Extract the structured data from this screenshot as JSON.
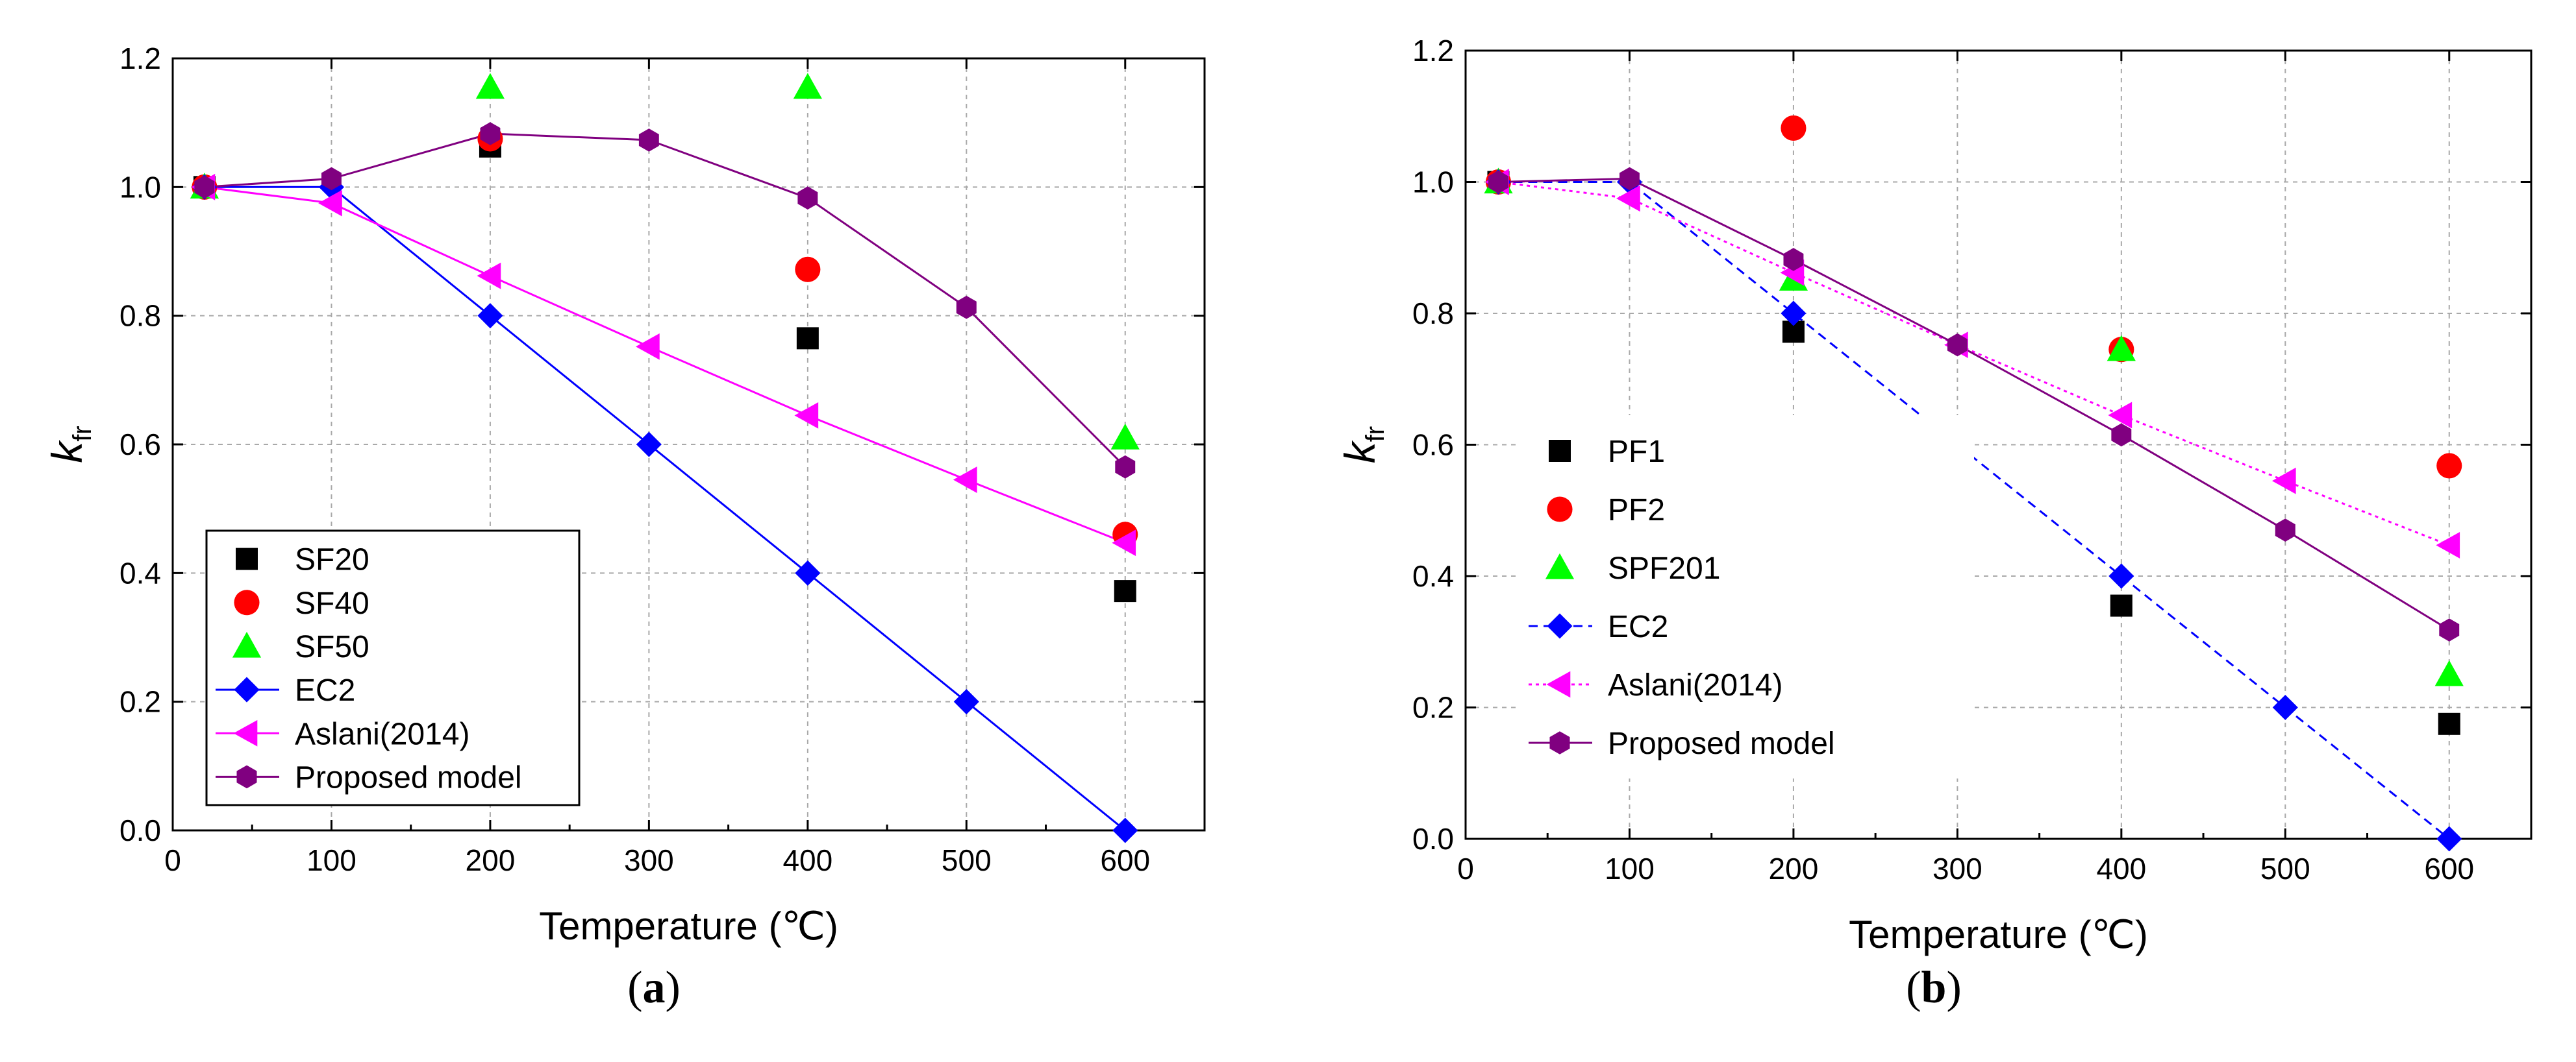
{
  "chart_data": [
    {
      "type": "line",
      "panel_label": "a",
      "title": "",
      "xlabel": "Temperature (℃)",
      "ylabel_main": "k",
      "ylabel_sub": "fr",
      "xlim": [
        0,
        650
      ],
      "ylim": [
        0,
        1.2
      ],
      "xticks": [
        0,
        100,
        200,
        300,
        400,
        500,
        600
      ],
      "yticks": [
        "0.0",
        "0.2",
        "0.4",
        "0.6",
        "0.8",
        "1.0",
        "1.2"
      ],
      "grid": true,
      "legend_position": "bottom-left",
      "series": [
        {
          "name": "SF20",
          "marker": "square",
          "color": "#000000",
          "line": "none",
          "x": [
            20,
            200,
            400,
            600
          ],
          "y": [
            1.0,
            1.063,
            0.765,
            0.372
          ]
        },
        {
          "name": "SF40",
          "marker": "circle",
          "color": "#ff0000",
          "line": "none",
          "x": [
            20,
            200,
            400,
            600
          ],
          "y": [
            1.0,
            1.075,
            0.872,
            0.46
          ]
        },
        {
          "name": "SF50",
          "marker": "triangle-up",
          "color": "#00ff00",
          "line": "none",
          "x": [
            20,
            200,
            400,
            600
          ],
          "y": [
            1.0,
            1.155,
            1.155,
            0.61
          ]
        },
        {
          "name": "EC2",
          "marker": "diamond",
          "color": "#0000ff",
          "line": "solid",
          "x": [
            20,
            100,
            200,
            300,
            400,
            500,
            600
          ],
          "y": [
            1.0,
            1.0,
            0.8,
            0.6,
            0.4,
            0.2,
            0.0
          ]
        },
        {
          "name": "Aslani(2014)",
          "marker": "triangle-left",
          "color": "#ff00ff",
          "line": "solid",
          "x": [
            20,
            100,
            200,
            300,
            400,
            500,
            600
          ],
          "y": [
            1.0,
            0.975,
            0.862,
            0.752,
            0.645,
            0.545,
            0.447
          ]
        },
        {
          "name": "Proposed model",
          "marker": "hexagon",
          "color": "#800080",
          "line": "solid",
          "x": [
            20,
            100,
            200,
            300,
            400,
            500,
            600
          ],
          "y": [
            1.0,
            1.013,
            1.083,
            1.073,
            0.983,
            0.813,
            0.565
          ]
        }
      ]
    },
    {
      "type": "line",
      "panel_label": "b",
      "title": "",
      "xlabel": "Temperature (℃)",
      "ylabel_main": "k",
      "ylabel_sub": "fr",
      "xlim": [
        0,
        650
      ],
      "ylim": [
        0,
        1.2
      ],
      "xticks": [
        0,
        100,
        200,
        300,
        400,
        500,
        600
      ],
      "yticks": [
        "0.0",
        "0.2",
        "0.4",
        "0.6",
        "0.8",
        "1.0",
        "1.2"
      ],
      "grid": true,
      "legend_position": "middle-left",
      "series": [
        {
          "name": "PF1",
          "marker": "square",
          "color": "#000000",
          "line": "none",
          "x": [
            20,
            200,
            400,
            600
          ],
          "y": [
            1.0,
            0.772,
            0.355,
            0.175
          ]
        },
        {
          "name": "PF2",
          "marker": "circle",
          "color": "#ff0000",
          "line": "none",
          "x": [
            20,
            200,
            400,
            600
          ],
          "y": [
            1.0,
            1.082,
            0.745,
            0.568
          ]
        },
        {
          "name": "SPF201",
          "marker": "triangle-up",
          "color": "#00ff00",
          "line": "none",
          "x": [
            20,
            200,
            400,
            600
          ],
          "y": [
            1.0,
            0.852,
            0.745,
            0.25
          ]
        },
        {
          "name": "EC2",
          "marker": "diamond",
          "color": "#0000ff",
          "line": "dashed",
          "x": [
            20,
            100,
            200,
            300,
            400,
            500,
            600
          ],
          "y": [
            1.0,
            1.0,
            0.8,
            0.6,
            0.4,
            0.2,
            0.0
          ]
        },
        {
          "name": "Aslani(2014)",
          "marker": "triangle-left",
          "color": "#ff00ff",
          "line": "dotted",
          "x": [
            20,
            100,
            200,
            300,
            400,
            500,
            600
          ],
          "y": [
            1.0,
            0.975,
            0.862,
            0.752,
            0.645,
            0.545,
            0.447
          ]
        },
        {
          "name": "Proposed model",
          "marker": "hexagon",
          "color": "#800080",
          "line": "solid",
          "x": [
            20,
            100,
            200,
            300,
            400,
            500,
            600
          ],
          "y": [
            1.0,
            1.005,
            0.882,
            0.752,
            0.615,
            0.47,
            0.318
          ]
        }
      ]
    }
  ]
}
